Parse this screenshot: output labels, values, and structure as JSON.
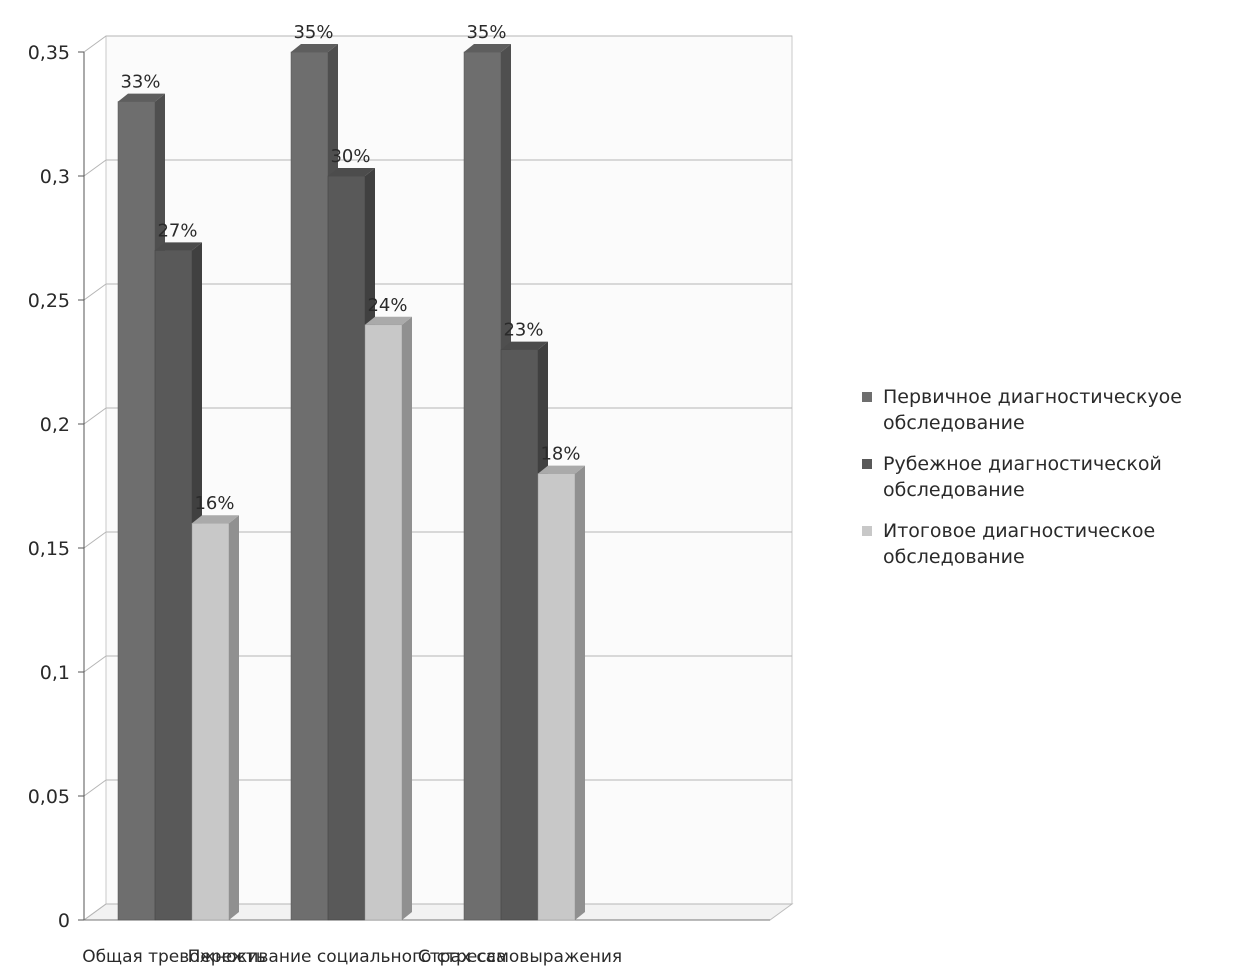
{
  "chart_data": {
    "type": "bar",
    "categories": [
      "Общая тревожность",
      "Переживание социального стресса",
      "Страх самовыражения"
    ],
    "series": [
      {
        "name": "Первичное диагностическуое обследование",
        "values": [
          0.33,
          0.35,
          0.35
        ],
        "labels": [
          "33%",
          "35%",
          "35%"
        ],
        "color": "#6e6e6e"
      },
      {
        "name": "Рубежное диагностической обследование",
        "values": [
          0.27,
          0.3,
          0.23
        ],
        "labels": [
          "27%",
          "30%",
          "23%"
        ],
        "color": "#595959"
      },
      {
        "name": "Итоговое диагностическое обследование",
        "values": [
          0.16,
          0.24,
          0.18
        ],
        "labels": [
          "16%",
          "24%",
          "18%"
        ],
        "color": "#c8c8c8"
      }
    ],
    "ylim": [
      0,
      0.35
    ],
    "yticks": [
      "0",
      "0,05",
      "0,1",
      "0,15",
      "0,2",
      "0,25",
      "0,3",
      "0,35"
    ],
    "grid": true,
    "legend_position": "right"
  }
}
